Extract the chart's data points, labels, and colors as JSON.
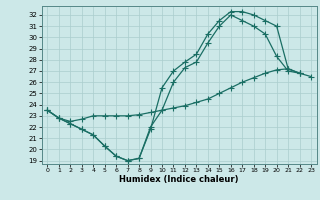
{
  "xlabel": "Humidex (Indice chaleur)",
  "xlim": [
    -0.5,
    23.5
  ],
  "ylim": [
    18.7,
    32.8
  ],
  "yticks": [
    19,
    20,
    21,
    22,
    23,
    24,
    25,
    26,
    27,
    28,
    29,
    30,
    31,
    32
  ],
  "xticks": [
    0,
    1,
    2,
    3,
    4,
    5,
    6,
    7,
    8,
    9,
    10,
    11,
    12,
    13,
    14,
    15,
    16,
    17,
    18,
    19,
    20,
    21,
    22,
    23
  ],
  "bg_color": "#cce8e8",
  "grid_color": "#aacece",
  "line_color": "#1a6e64",
  "line1_x": [
    0,
    1,
    2,
    3,
    4,
    5,
    6,
    7,
    8,
    9,
    10,
    11,
    12,
    13,
    14,
    15,
    16,
    17,
    18,
    19,
    20,
    21,
    22,
    23
  ],
  "line1_y": [
    23.5,
    22.8,
    22.5,
    22.7,
    23.0,
    23.0,
    23.0,
    23.0,
    23.1,
    23.3,
    23.5,
    23.7,
    23.9,
    24.2,
    24.5,
    25.0,
    25.5,
    26.0,
    26.4,
    26.8,
    27.1,
    27.2,
    26.8,
    26.5
  ],
  "line2_x": [
    0,
    1,
    2,
    3,
    4,
    5,
    6,
    7,
    8,
    9,
    10,
    11,
    12,
    13,
    14,
    15,
    16,
    17,
    18,
    19,
    20,
    21,
    22
  ],
  "line2_y": [
    23.5,
    22.8,
    22.3,
    21.8,
    21.3,
    20.3,
    19.4,
    19.0,
    19.2,
    21.8,
    25.5,
    27.0,
    27.8,
    28.5,
    30.3,
    31.5,
    32.3,
    32.3,
    32.0,
    31.5,
    31.0,
    27.2,
    26.8
  ],
  "line3_x": [
    0,
    1,
    2,
    3,
    4,
    5,
    6,
    7,
    8,
    9,
    10,
    11,
    12,
    13,
    14,
    15,
    16,
    17,
    18,
    19,
    20,
    21,
    22
  ],
  "line3_y": [
    23.5,
    22.8,
    22.3,
    21.8,
    21.3,
    20.3,
    19.4,
    19.0,
    19.2,
    22.0,
    23.5,
    26.0,
    27.3,
    27.8,
    29.5,
    31.0,
    32.0,
    31.5,
    31.0,
    30.3,
    28.3,
    27.0,
    26.8
  ]
}
